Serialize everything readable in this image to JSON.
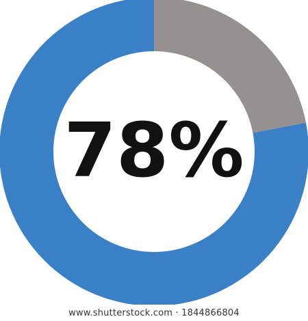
{
  "chart_data": {
    "type": "pie",
    "style": "donut",
    "center_label": "78%",
    "slices": [
      {
        "value": 78,
        "color": "#3a80c6"
      },
      {
        "value": 22,
        "color": "#959191"
      }
    ],
    "start_angle_deg": 0,
    "direction": "counterclockwise"
  },
  "watermark": {
    "text": "www.shutterstock.com · 1844866804"
  }
}
